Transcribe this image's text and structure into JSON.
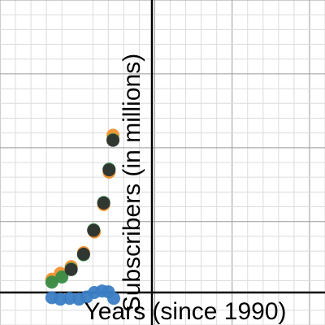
{
  "chart_data": {
    "type": "scatter",
    "xlabel": "Years (since 1990)",
    "ylabel": "Subscribers (in millions)",
    "grid": true,
    "xlim": [
      -10,
      32
    ],
    "ylim": [
      -4,
      40
    ],
    "series": [
      {
        "color": "#f0912e",
        "points": [
          [
            -3.3,
            2.2
          ],
          [
            -2.2,
            3.0
          ],
          [
            -0.8,
            3.9
          ],
          [
            0.8,
            5.8
          ],
          [
            2.2,
            8.6
          ],
          [
            3.4,
            12.3
          ],
          [
            4.1,
            16.7
          ],
          [
            4.6,
            21.7
          ]
        ]
      },
      {
        "color": "#388c46",
        "points": [
          [
            -3.3,
            1.8
          ],
          [
            -2.0,
            2.5
          ],
          [
            -0.8,
            3.6
          ],
          [
            0.8,
            5.5
          ],
          [
            2.1,
            8.9
          ],
          [
            3.4,
            12.6
          ],
          [
            4.1,
            17.1
          ],
          [
            4.6,
            21.1
          ]
        ]
      },
      {
        "color": "#2d2d2d",
        "points": [
          [
            -0.8,
            3.5
          ],
          [
            0.8,
            5.6
          ],
          [
            2.1,
            8.8
          ],
          [
            3.4,
            12.5
          ],
          [
            4.1,
            17.0
          ],
          [
            4.6,
            21.0
          ]
        ]
      },
      {
        "color": "#3b7dc4",
        "points": [
          [
            -3.3,
            -0.3
          ],
          [
            -2.2,
            -0.5
          ],
          [
            -1.0,
            -0.4
          ],
          [
            0.2,
            -0.5
          ],
          [
            1.2,
            -0.2
          ],
          [
            2.2,
            0.4
          ],
          [
            3.2,
            0.6
          ],
          [
            4.0,
            0.5
          ],
          [
            4.7,
            -0.4
          ]
        ]
      }
    ]
  }
}
